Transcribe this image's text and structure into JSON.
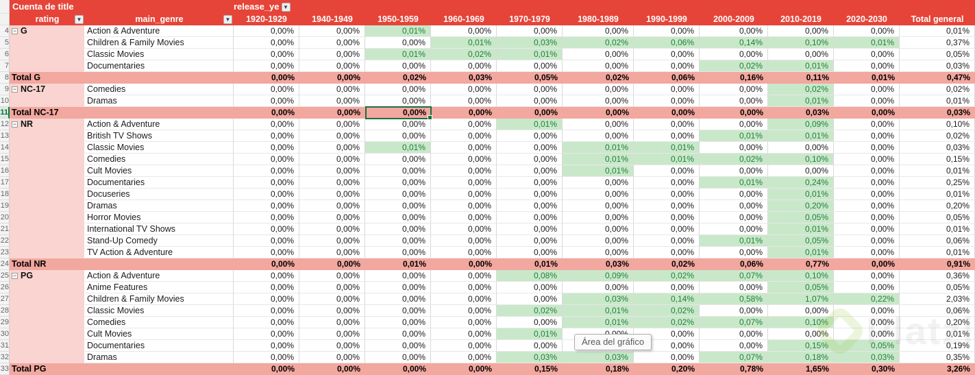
{
  "header": {
    "title_cell": "Cuenta de title",
    "release_label": "release_ye",
    "rating_label": "rating",
    "genre_label": "main_genre",
    "columns": [
      "1920-1929",
      "1940-1949",
      "1950-1959",
      "1960-1969",
      "1970-1979",
      "1980-1989",
      "1990-1999",
      "2000-2009",
      "2010-2019",
      "2020-2030",
      "Total general"
    ],
    "filter_icon": "▼"
  },
  "colors": {
    "header_red": "#e64438",
    "group_pink": "#f9d4d0",
    "total_salmon": "#f2a79f",
    "highlight_green_bg": "#c9e8ca",
    "highlight_green_text": "#1f8038",
    "selection_green": "#17703e"
  },
  "tooltip": {
    "text": "Área del gráfico"
  },
  "watermark": {
    "text": "Platzi"
  },
  "rows": [
    {
      "n": 4,
      "group": "G",
      "genre": "Action & Adventure",
      "v": [
        "0,00%",
        "0,00%",
        "0,01%",
        "0,00%",
        "0,00%",
        "0,00%",
        "0,00%",
        "0,00%",
        "0,00%",
        "0,00%",
        "0,01%"
      ],
      "g": [
        2
      ]
    },
    {
      "n": 5,
      "genre": "Children & Family Movies",
      "v": [
        "0,00%",
        "0,00%",
        "0,00%",
        "0,01%",
        "0,03%",
        "0,02%",
        "0,06%",
        "0,14%",
        "0,10%",
        "0,01%",
        "0,37%"
      ],
      "g": [
        3,
        4,
        5,
        6,
        7,
        8,
        9
      ]
    },
    {
      "n": 6,
      "genre": "Classic Movies",
      "v": [
        "0,00%",
        "0,00%",
        "0,01%",
        "0,02%",
        "0,01%",
        "0,00%",
        "0,00%",
        "0,00%",
        "0,00%",
        "0,00%",
        "0,05%"
      ],
      "g": [
        2,
        3,
        4
      ]
    },
    {
      "n": 7,
      "genre": "Documentaries",
      "v": [
        "0,00%",
        "0,00%",
        "0,00%",
        "0,00%",
        "0,00%",
        "0,00%",
        "0,00%",
        "0,02%",
        "0,01%",
        "0,00%",
        "0,03%"
      ],
      "g": [
        7,
        8
      ]
    },
    {
      "n": 8,
      "total": "Total G",
      "v": [
        "0,00%",
        "0,00%",
        "0,02%",
        "0,03%",
        "0,05%",
        "0,02%",
        "0,06%",
        "0,16%",
        "0,11%",
        "0,01%",
        "0,47%"
      ]
    },
    {
      "n": 9,
      "group": "NC-17",
      "genre": "Comedies",
      "v": [
        "0,00%",
        "0,00%",
        "0,00%",
        "0,00%",
        "0,00%",
        "0,00%",
        "0,00%",
        "0,00%",
        "0,02%",
        "0,00%",
        "0,02%"
      ],
      "g": [
        8
      ]
    },
    {
      "n": 10,
      "genre": "Dramas",
      "v": [
        "0,00%",
        "0,00%",
        "0,00%",
        "0,00%",
        "0,00%",
        "0,00%",
        "0,00%",
        "0,00%",
        "0,01%",
        "0,00%",
        "0,01%"
      ],
      "g": [
        8
      ]
    },
    {
      "n": 11,
      "total": "Total NC-17",
      "active": true,
      "v": [
        "0,00%",
        "0,00%",
        "0,00%",
        "0,00%",
        "0,00%",
        "0,00%",
        "0,00%",
        "0,00%",
        "0,03%",
        "0,00%",
        "0,03%"
      ]
    },
    {
      "n": 12,
      "group": "NR",
      "genre": "Action & Adventure",
      "v": [
        "0,00%",
        "0,00%",
        "0,00%",
        "0,00%",
        "0,01%",
        "0,00%",
        "0,00%",
        "0,00%",
        "0,09%",
        "0,00%",
        "0,10%"
      ],
      "g": [
        4,
        8
      ]
    },
    {
      "n": 13,
      "genre": "British TV Shows",
      "v": [
        "0,00%",
        "0,00%",
        "0,00%",
        "0,00%",
        "0,00%",
        "0,00%",
        "0,00%",
        "0,01%",
        "0,01%",
        "0,00%",
        "0,02%"
      ],
      "g": [
        7,
        8
      ]
    },
    {
      "n": 14,
      "genre": "Classic Movies",
      "v": [
        "0,00%",
        "0,00%",
        "0,01%",
        "0,00%",
        "0,00%",
        "0,01%",
        "0,01%",
        "0,00%",
        "0,00%",
        "0,00%",
        "0,03%"
      ],
      "g": [
        2,
        5,
        6
      ]
    },
    {
      "n": 15,
      "genre": "Comedies",
      "v": [
        "0,00%",
        "0,00%",
        "0,00%",
        "0,00%",
        "0,00%",
        "0,01%",
        "0,01%",
        "0,02%",
        "0,10%",
        "0,00%",
        "0,15%"
      ],
      "g": [
        5,
        6,
        7,
        8
      ]
    },
    {
      "n": 16,
      "genre": "Cult Movies",
      "v": [
        "0,00%",
        "0,00%",
        "0,00%",
        "0,00%",
        "0,00%",
        "0,01%",
        "0,00%",
        "0,00%",
        "0,00%",
        "0,00%",
        "0,01%"
      ],
      "g": [
        5
      ]
    },
    {
      "n": 17,
      "genre": "Documentaries",
      "v": [
        "0,00%",
        "0,00%",
        "0,00%",
        "0,00%",
        "0,00%",
        "0,00%",
        "0,00%",
        "0,01%",
        "0,24%",
        "0,00%",
        "0,25%"
      ],
      "g": [
        7,
        8
      ]
    },
    {
      "n": 18,
      "genre": "Docuseries",
      "v": [
        "0,00%",
        "0,00%",
        "0,00%",
        "0,00%",
        "0,00%",
        "0,00%",
        "0,00%",
        "0,00%",
        "0,01%",
        "0,00%",
        "0,01%"
      ],
      "g": [
        8
      ]
    },
    {
      "n": 19,
      "genre": "Dramas",
      "v": [
        "0,00%",
        "0,00%",
        "0,00%",
        "0,00%",
        "0,00%",
        "0,00%",
        "0,00%",
        "0,00%",
        "0,20%",
        "0,00%",
        "0,20%"
      ],
      "g": [
        8
      ]
    },
    {
      "n": 20,
      "genre": "Horror Movies",
      "v": [
        "0,00%",
        "0,00%",
        "0,00%",
        "0,00%",
        "0,00%",
        "0,00%",
        "0,00%",
        "0,00%",
        "0,05%",
        "0,00%",
        "0,05%"
      ],
      "g": [
        8
      ]
    },
    {
      "n": 21,
      "genre": "International TV Shows",
      "v": [
        "0,00%",
        "0,00%",
        "0,00%",
        "0,00%",
        "0,00%",
        "0,00%",
        "0,00%",
        "0,00%",
        "0,01%",
        "0,00%",
        "0,01%"
      ],
      "g": [
        8
      ]
    },
    {
      "n": 22,
      "genre": "Stand-Up Comedy",
      "v": [
        "0,00%",
        "0,00%",
        "0,00%",
        "0,00%",
        "0,00%",
        "0,00%",
        "0,00%",
        "0,01%",
        "0,05%",
        "0,00%",
        "0,06%"
      ],
      "g": [
        7,
        8
      ]
    },
    {
      "n": 23,
      "genre": "TV Action & Adventure",
      "v": [
        "0,00%",
        "0,00%",
        "0,00%",
        "0,00%",
        "0,00%",
        "0,00%",
        "0,00%",
        "0,00%",
        "0,01%",
        "0,00%",
        "0,01%"
      ],
      "g": [
        8
      ]
    },
    {
      "n": 24,
      "total": "Total NR",
      "v": [
        "0,00%",
        "0,00%",
        "0,01%",
        "0,00%",
        "0,01%",
        "0,03%",
        "0,02%",
        "0,06%",
        "0,77%",
        "0,00%",
        "0,91%"
      ]
    },
    {
      "n": 25,
      "group": "PG",
      "genre": "Action & Adventure",
      "v": [
        "0,00%",
        "0,00%",
        "0,00%",
        "0,00%",
        "0,08%",
        "0,09%",
        "0,02%",
        "0,07%",
        "0,10%",
        "0,00%",
        "0,36%"
      ],
      "g": [
        4,
        5,
        6,
        7,
        8
      ]
    },
    {
      "n": 26,
      "genre": "Anime Features",
      "v": [
        "0,00%",
        "0,00%",
        "0,00%",
        "0,00%",
        "0,00%",
        "0,00%",
        "0,00%",
        "0,00%",
        "0,05%",
        "0,00%",
        "0,05%"
      ],
      "g": [
        8
      ]
    },
    {
      "n": 27,
      "genre": "Children & Family Movies",
      "v": [
        "0,00%",
        "0,00%",
        "0,00%",
        "0,00%",
        "0,00%",
        "0,03%",
        "0,14%",
        "0,58%",
        "1,07%",
        "0,22%",
        "2,03%"
      ],
      "g": [
        5,
        6,
        7,
        8,
        9
      ]
    },
    {
      "n": 28,
      "genre": "Classic Movies",
      "v": [
        "0,00%",
        "0,00%",
        "0,00%",
        "0,00%",
        "0,02%",
        "0,01%",
        "0,02%",
        "0,00%",
        "0,00%",
        "0,00%",
        "0,06%"
      ],
      "g": [
        4,
        5,
        6
      ]
    },
    {
      "n": 29,
      "genre": "Comedies",
      "v": [
        "0,00%",
        "0,00%",
        "0,00%",
        "0,00%",
        "0,00%",
        "0,01%",
        "0,02%",
        "0,07%",
        "0,10%",
        "0,00%",
        "0,20%"
      ],
      "g": [
        5,
        6,
        7,
        8
      ]
    },
    {
      "n": 30,
      "genre": "Cult Movies",
      "v": [
        "0,00%",
        "0,00%",
        "0,00%",
        "0,00%",
        "0,01%",
        "0,00%",
        "0,00%",
        "0,00%",
        "0,00%",
        "0,00%",
        "0,01%"
      ],
      "g": [
        4
      ]
    },
    {
      "n": 31,
      "genre": "Documentaries",
      "v": [
        "0,00%",
        "0,00%",
        "0,00%",
        "0,00%",
        "0,00%",
        "0,00%",
        "0,00%",
        "0,00%",
        "0,15%",
        "0,05%",
        "0,19%"
      ],
      "g": [
        8,
        9
      ]
    },
    {
      "n": 32,
      "genre": "Dramas",
      "v": [
        "0,00%",
        "0,00%",
        "0,00%",
        "0,00%",
        "0,03%",
        "0,03%",
        "0,00%",
        "0,07%",
        "0,18%",
        "0,03%",
        "0,35%"
      ],
      "g": [
        4,
        5,
        7,
        8,
        9
      ]
    },
    {
      "n": 33,
      "total": "Total PG",
      "v": [
        "0,00%",
        "0,00%",
        "0,00%",
        "0,00%",
        "0,15%",
        "0,18%",
        "0,20%",
        "0,78%",
        "1,65%",
        "0,30%",
        "3,26%"
      ]
    }
  ]
}
